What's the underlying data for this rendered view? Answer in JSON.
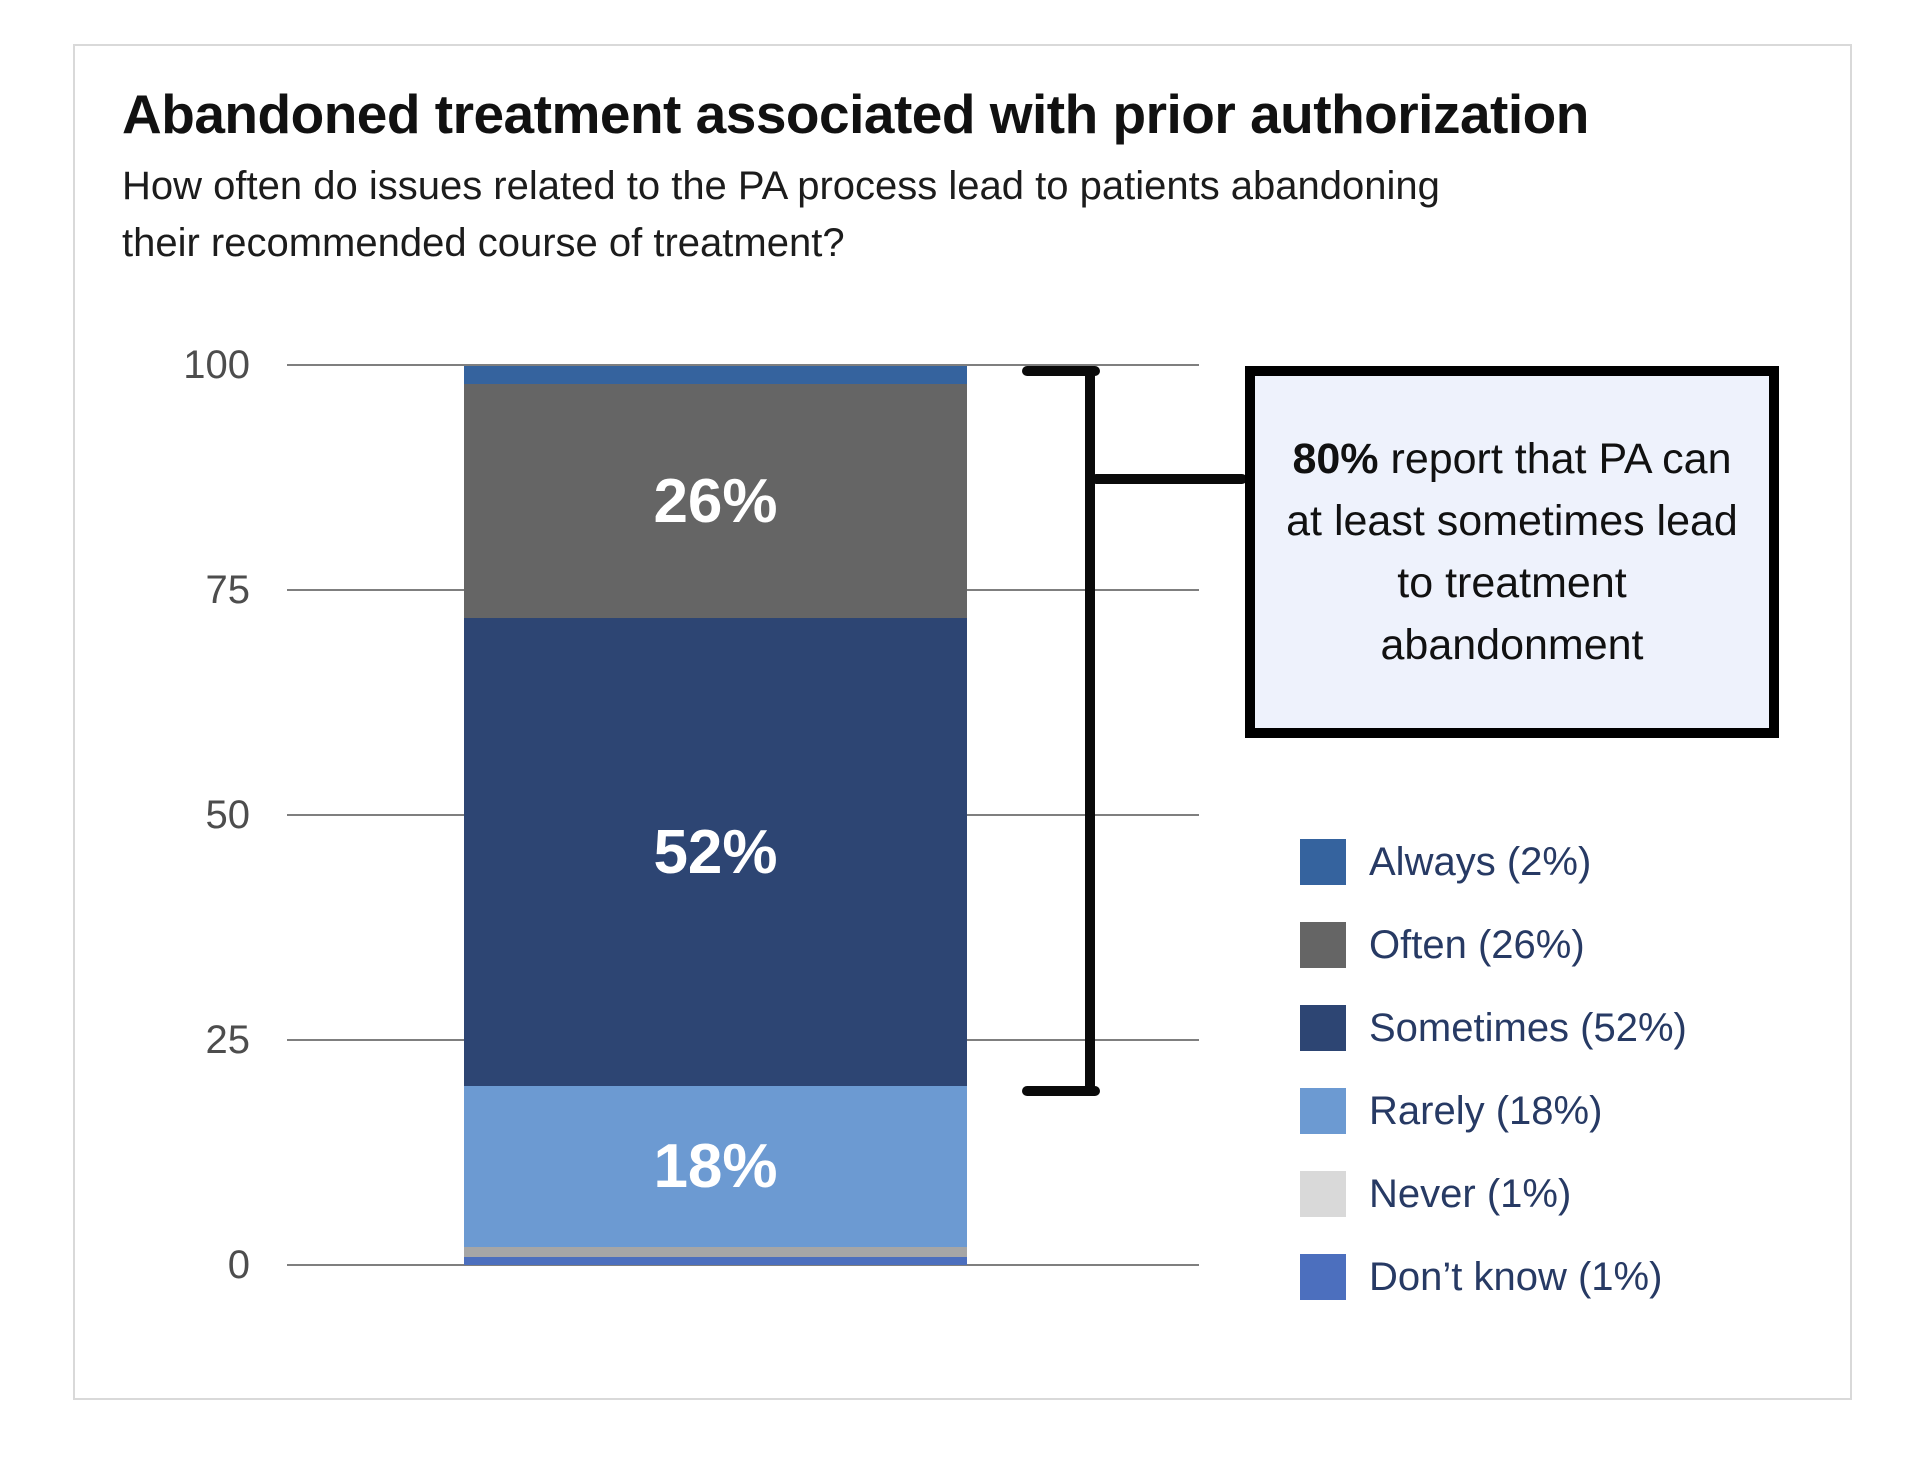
{
  "header": {
    "title": "Abandoned treatment associated with prior authorization",
    "subtitle": "How often do issues related to the PA process lead to patients abandoning their recommended course of treatment?"
  },
  "axis": {
    "ticks": [
      "100",
      "75",
      "50",
      "25",
      "0"
    ],
    "tick_color": "#4d4d4d",
    "gridline_color": "#7f7f7f"
  },
  "callout": {
    "highlight": "80%",
    "rest": " report that PA can at least sometimes lead to treatment abandonment",
    "background": "#eef2fc",
    "border_color": "#000000"
  },
  "legend": {
    "text_color": "#273a64",
    "items": [
      {
        "label": "Always (2%)",
        "color": "#35639e"
      },
      {
        "label": "Often (26%)",
        "color": "#656565"
      },
      {
        "label": "Sometimes (52%)",
        "color": "#2d4573"
      },
      {
        "label": "Rarely (18%)",
        "color": "#6c9ad2"
      },
      {
        "label": "Never (1%)",
        "color": "#d9d9d9"
      },
      {
        "label": "Don’t know (1%)",
        "color": "#4c6fbe"
      }
    ]
  },
  "chart_data": {
    "type": "bar",
    "stacked": true,
    "title": "Abandoned treatment associated with prior authorization",
    "question": "How often do issues related to the PA process lead to patients abandoning their recommended course of treatment?",
    "ylim": [
      0,
      100
    ],
    "yticks": [
      0,
      25,
      50,
      75,
      100
    ],
    "grid": "horizontal",
    "legend_position": "right",
    "segments": [
      {
        "name": "Always",
        "value": 2,
        "color": "#35639e",
        "in_bar_label": ""
      },
      {
        "name": "Often",
        "value": 26,
        "color": "#656565",
        "in_bar_label": "26%"
      },
      {
        "name": "Sometimes",
        "value": 52,
        "color": "#2d4573",
        "in_bar_label": "52%"
      },
      {
        "name": "Rarely",
        "value": 18,
        "color": "#6c9ad2",
        "in_bar_label": "18%"
      },
      {
        "name": "Never",
        "value": 1,
        "color": "#a6a6a6",
        "in_bar_label": ""
      },
      {
        "name": "Don’t know",
        "value": 1,
        "color": "#4c6fbe",
        "in_bar_label": ""
      }
    ],
    "annotation": {
      "text": "80% report that PA can at least sometimes lead to treatment abandonment",
      "bracket_value_span": [
        20,
        100
      ]
    }
  }
}
